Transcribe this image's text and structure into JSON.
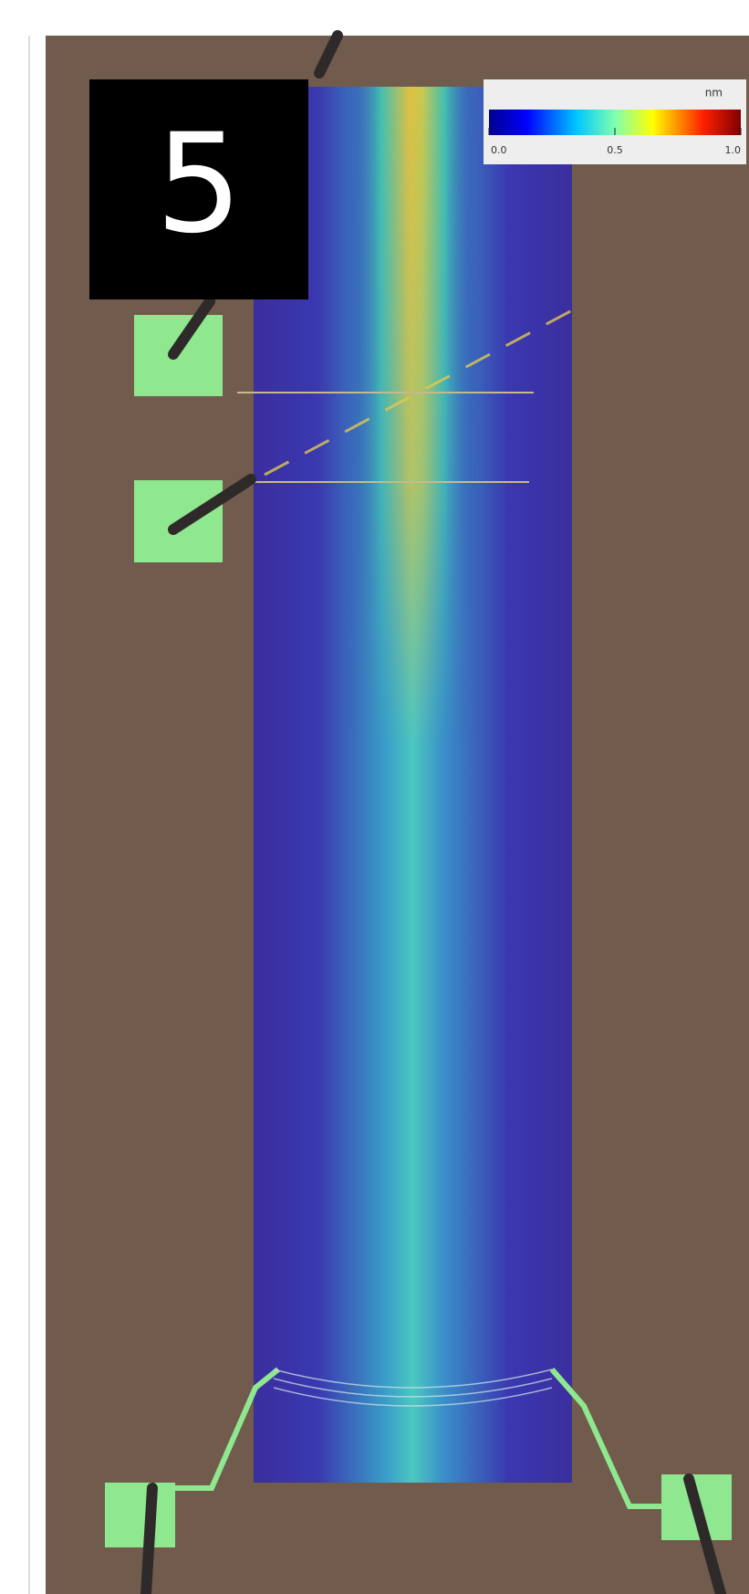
{
  "panel_label": "5",
  "colorbar": {
    "unit": "nm",
    "lim": [
      0,
      1
    ],
    "ticks": [
      {
        "value": 0,
        "label": "0.0"
      },
      {
        "value": 0.5,
        "label": "0.5"
      },
      {
        "value": 1,
        "label": "1.0"
      }
    ]
  }
}
